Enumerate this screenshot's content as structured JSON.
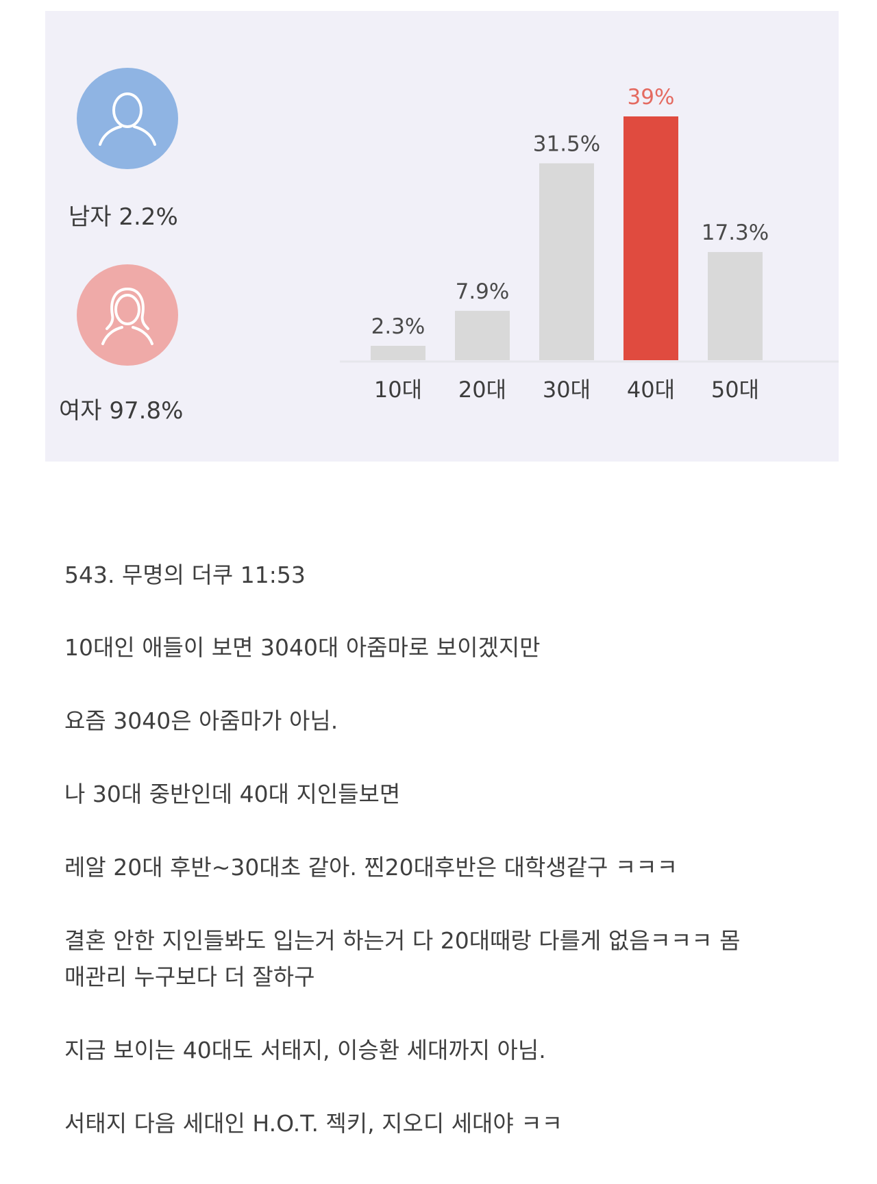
{
  "gender": {
    "male": {
      "label": "남자 2.2%",
      "icon": "male-user-icon",
      "color": "#8fb4e3"
    },
    "female": {
      "label": "여자 97.8%",
      "icon": "female-user-icon",
      "color": "#efaaa8"
    }
  },
  "chart_data": {
    "type": "bar",
    "categories": [
      "10대",
      "20대",
      "30대",
      "40대",
      "50대"
    ],
    "values": [
      2.3,
      7.9,
      31.5,
      39,
      17.3
    ],
    "value_labels": [
      "2.3%",
      "7.9%",
      "31.5%",
      "39%",
      "17.3%"
    ],
    "highlight_index": 3,
    "colors": {
      "bar": "#d9d9d9",
      "highlight": "#e04b3f",
      "highlight_label": "#e46a60"
    },
    "ylim": [
      0,
      39
    ],
    "grid": false
  },
  "post": {
    "header": "543. 무명의 더쿠 11:53",
    "paragraphs": [
      "10대인 애들이 보면 3040대 아줌마로 보이겠지만",
      "요즘 3040은 아줌마가 아님.",
      "나 30대 중반인데 40대 지인들보면",
      "레알 20대 후반~30대초 같아. 찐20대후반은 대학생같구 ㅋㅋㅋ",
      "결혼 안한 지인들봐도 입는거 하는거 다 20대때랑 다를게 없음ㅋㅋㅋ 몸\n매관리 누구보다 더 잘하구",
      "지금 보이는 40대도 서태지, 이승환 세대까지 아님.",
      "서태지 다음 세대인 H.O.T. 젝키, 지오디 세대야 ㅋㅋ"
    ]
  }
}
